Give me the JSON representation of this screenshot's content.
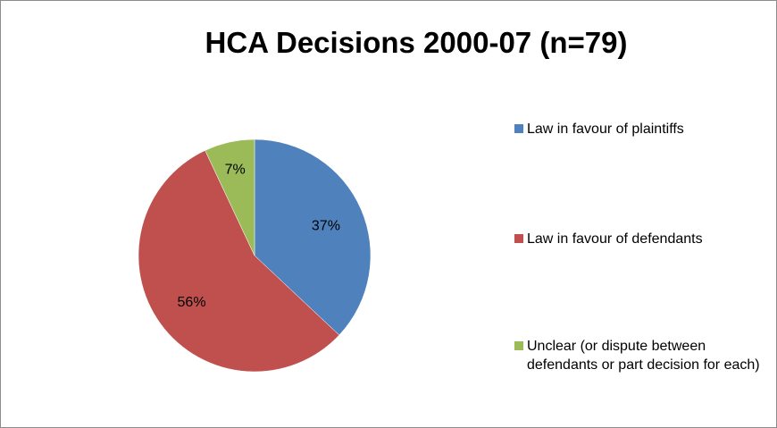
{
  "chart_data": {
    "type": "pie",
    "title": "HCA Decisions 2000-07 (n=79)",
    "slices": [
      {
        "label": "Law in favour of plaintiffs",
        "value": 37,
        "data_label": "37%",
        "color": "#4f81bd"
      },
      {
        "label": "Law in favour of defendants",
        "value": 56,
        "data_label": "56%",
        "color": "#c0504d"
      },
      {
        "label": "Unclear (or dispute between defendants or part decision for each)",
        "value": 7,
        "data_label": "7%",
        "color": "#9bbb59"
      }
    ],
    "legend_position": "right"
  }
}
